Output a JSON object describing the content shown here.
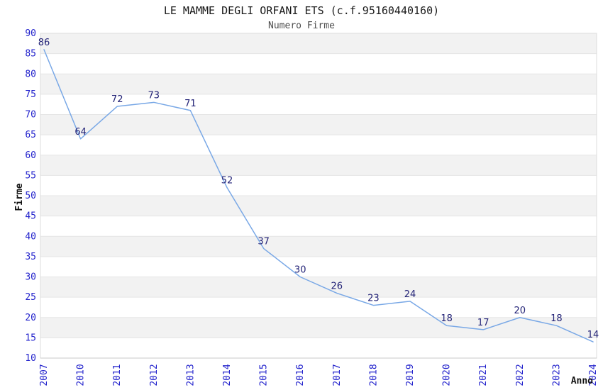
{
  "chart_data": {
    "type": "line",
    "title": "LE MAMME DEGLI ORFANI ETS (c.f.95160440160)",
    "subtitle": "Numero Firme",
    "xlabel": "Anno",
    "ylabel": "Firme",
    "categories": [
      "2007",
      "2010",
      "2011",
      "2012",
      "2013",
      "2014",
      "2015",
      "2016",
      "2017",
      "2018",
      "2019",
      "2020",
      "2021",
      "2022",
      "2023",
      "2024"
    ],
    "values": [
      86,
      64,
      72,
      73,
      71,
      52,
      37,
      30,
      26,
      23,
      24,
      18,
      17,
      20,
      18,
      14
    ],
    "ylim": [
      10,
      90
    ],
    "ytick_step": 5,
    "yticks": [
      10,
      15,
      20,
      25,
      30,
      35,
      40,
      45,
      50,
      55,
      60,
      65,
      70,
      75,
      80,
      85,
      90
    ],
    "grid": "horizontal gridlines with alternating shaded bands",
    "legend": "none",
    "point_labels_visible": true,
    "colors": {
      "line": "#79a8e6",
      "point_label": "#232377",
      "tick_label": "#2222cc",
      "band_shaded": "#f2f2f2",
      "band_plain": "#ffffff",
      "grid_line": "#e5e5e5",
      "plot_border": "#dcdcdc",
      "axis_line": "#c8c8c8",
      "title": "#1a1a1a",
      "subtitle": "#4d4d4d",
      "axis_label": "#111111",
      "background": "#ffffff"
    }
  }
}
